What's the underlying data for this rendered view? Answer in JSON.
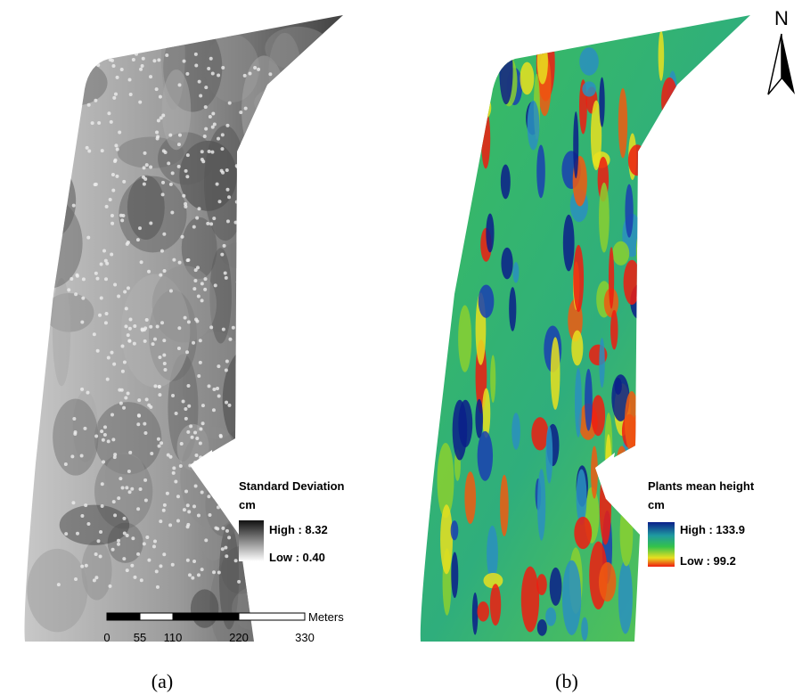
{
  "panels": [
    {
      "caption": "(a)",
      "legend": {
        "title": "Standard Deviation",
        "unit": "cm",
        "high": "High : 8.32",
        "low": "Low : 0.40"
      }
    },
    {
      "caption": "(b)",
      "legend": {
        "title": "Plants mean height",
        "unit": "cm",
        "high": "High : 133.9",
        "low": "Low : 99.2"
      }
    }
  ],
  "scale_bar": {
    "ticks": [
      0,
      55,
      110,
      220,
      330
    ],
    "unit": "Meters"
  },
  "north_arrow": {
    "label": "N"
  }
}
